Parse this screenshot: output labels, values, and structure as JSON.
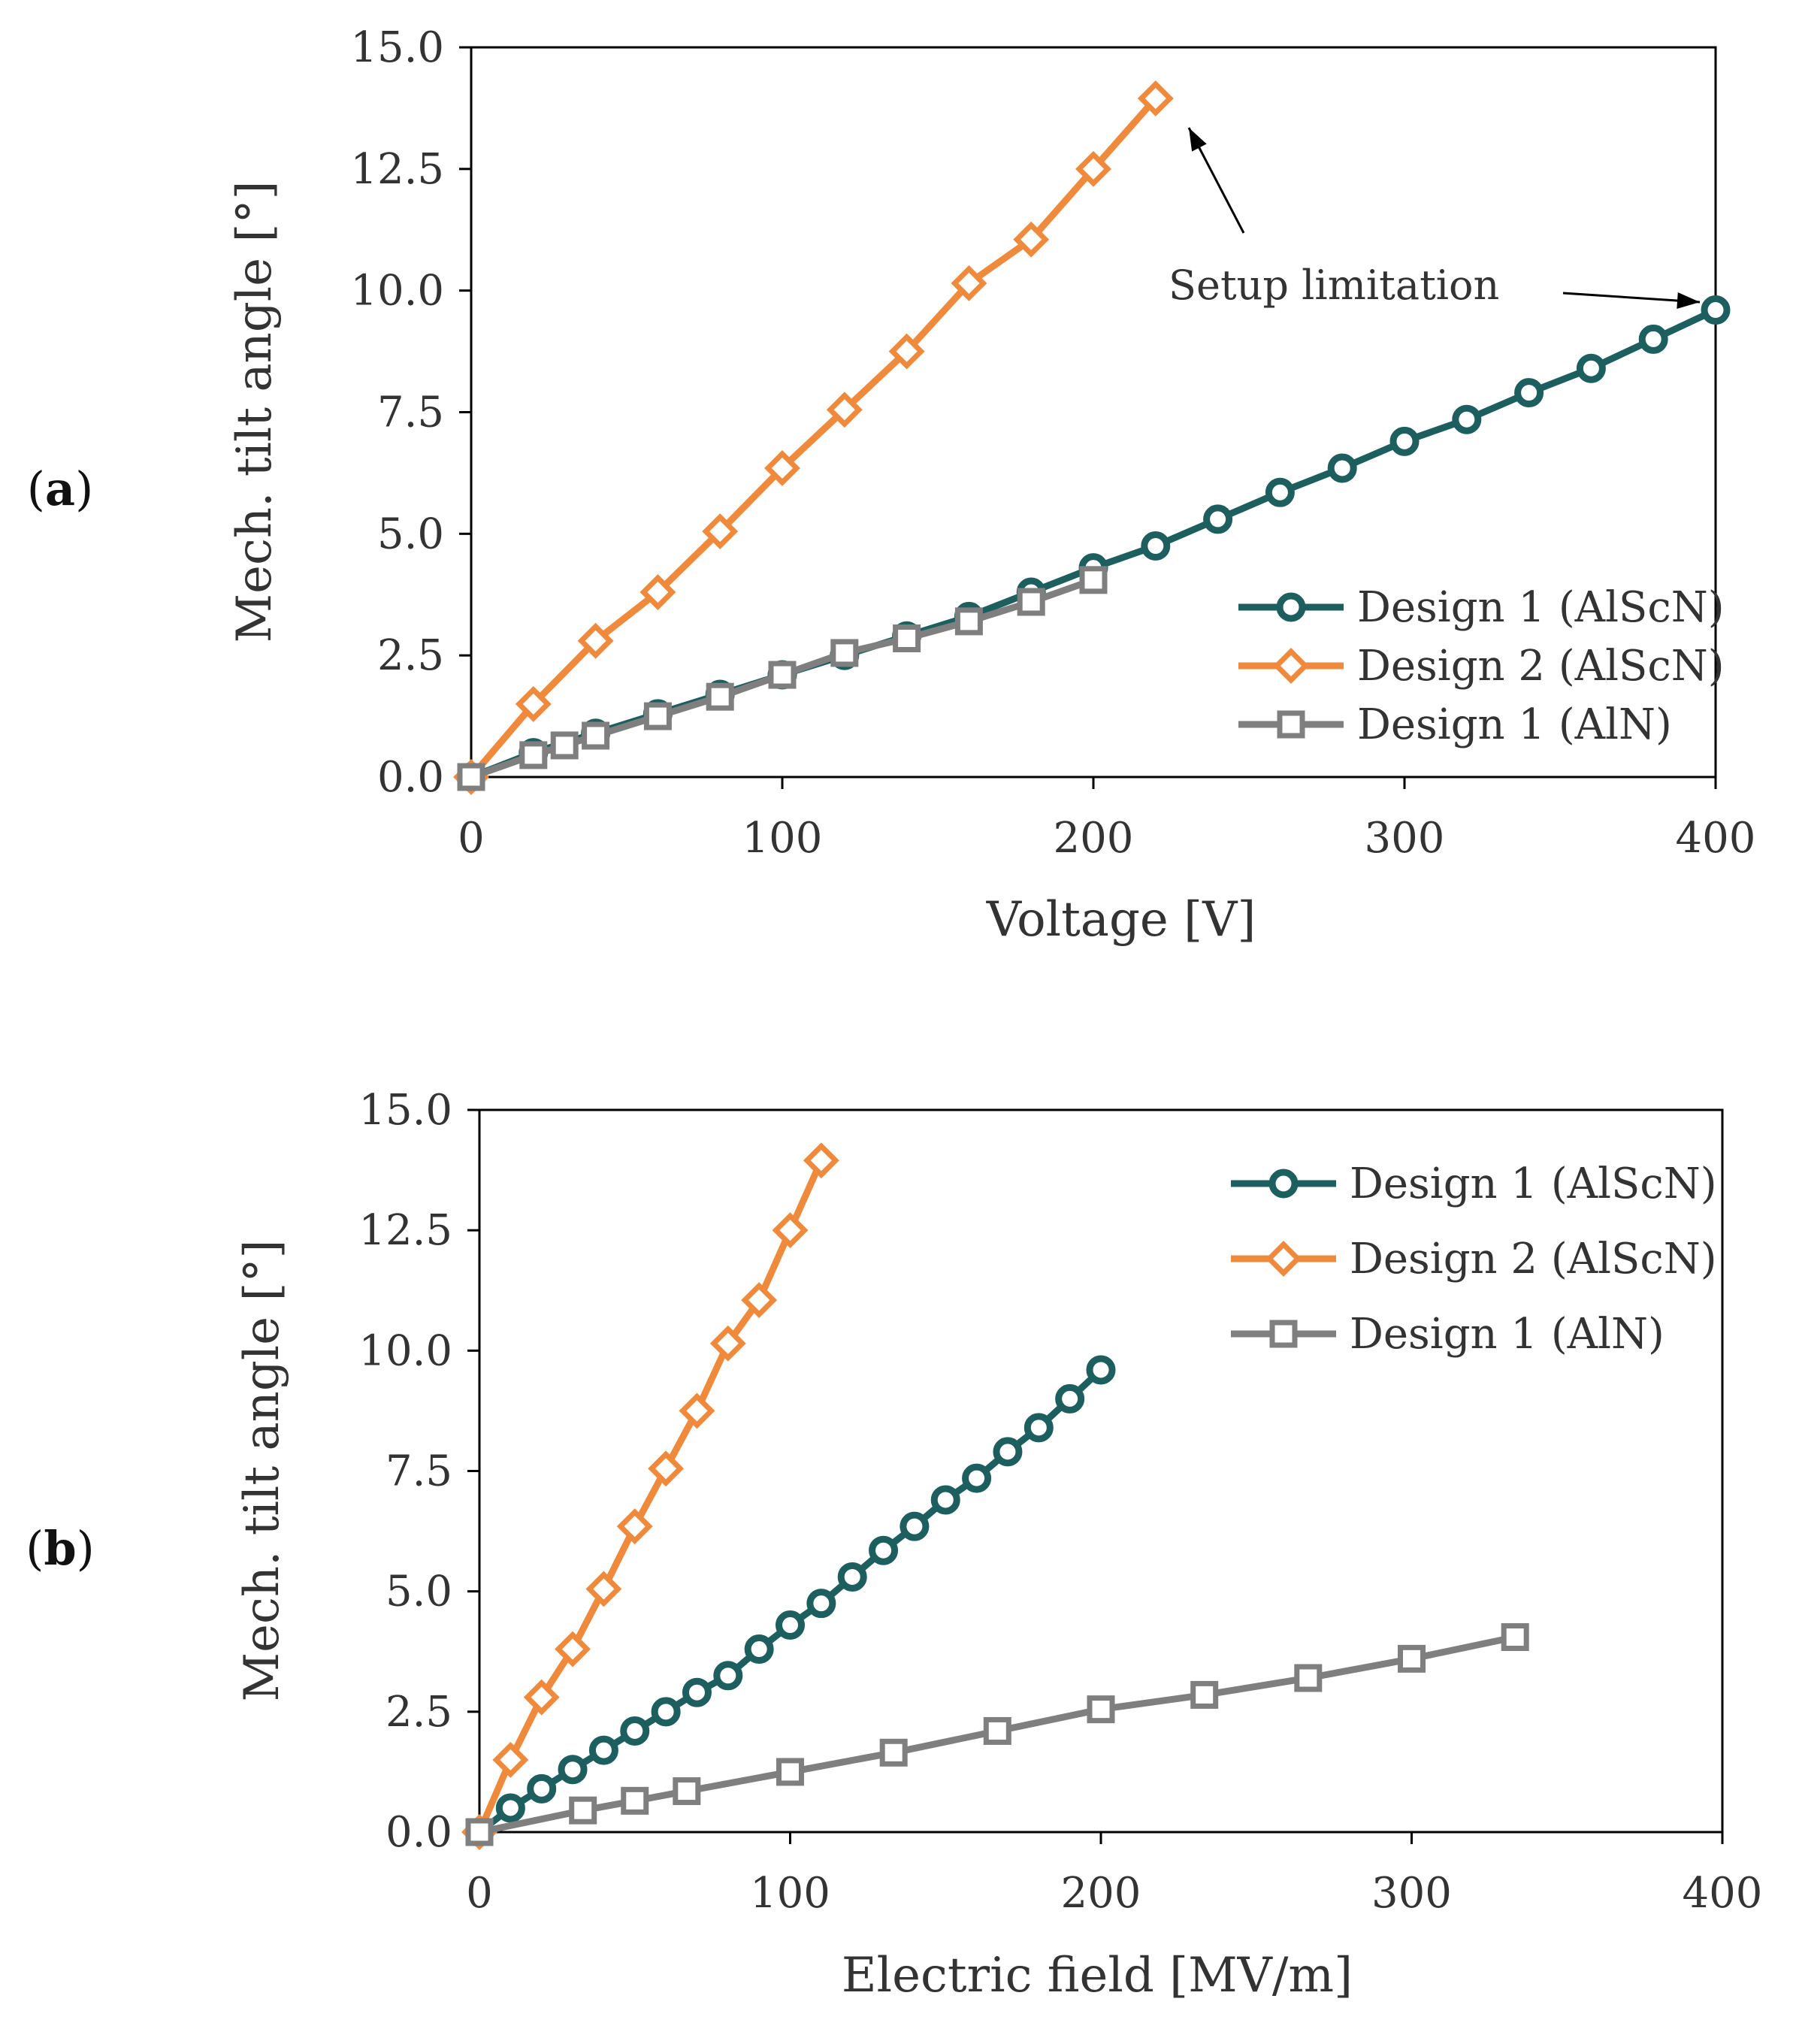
{
  "chart_data": [
    {
      "type": "line",
      "panel_label": "(a)",
      "panel_bold": "a",
      "xlabel": "Voltage [V]",
      "ylabel": "Mech. tilt angle [°]",
      "xlim": [
        0,
        400
      ],
      "ylim": [
        0,
        15
      ],
      "xticks": [
        "0",
        "100",
        "200",
        "300",
        "400"
      ],
      "yticks": [
        "0.0",
        "2.5",
        "5.0",
        "7.5",
        "10.0",
        "12.5",
        "15.0"
      ],
      "grid": false,
      "legend_position": "bottom-right",
      "annotation": "Setup limitation",
      "series": [
        {
          "name": "Design 1 (AlScN)",
          "color": "#1d5e5f",
          "marker": "circle",
          "x": [
            0,
            20,
            40,
            60,
            80,
            100,
            120,
            140,
            160,
            180,
            200,
            220,
            240,
            260,
            280,
            300,
            320,
            340,
            360,
            380,
            400
          ],
          "y": [
            0.0,
            0.5,
            0.9,
            1.3,
            1.7,
            2.1,
            2.5,
            2.9,
            3.3,
            3.8,
            4.3,
            4.75,
            5.3,
            5.85,
            6.35,
            6.9,
            7.35,
            7.9,
            8.4,
            9.0,
            9.6
          ]
        },
        {
          "name": "Design 2 (AlScN)",
          "color": "#ef8a3c",
          "marker": "diamond",
          "x": [
            0,
            20,
            40,
            60,
            80,
            100,
            120,
            140,
            160,
            180,
            200,
            220
          ],
          "y": [
            0.0,
            1.5,
            2.8,
            3.8,
            5.05,
            6.35,
            7.55,
            8.75,
            10.15,
            11.05,
            12.5,
            13.95
          ]
        },
        {
          "name": "Design 1 (AlN)",
          "color": "#7f7f7f",
          "marker": "square",
          "x": [
            0,
            20,
            30,
            40,
            60,
            80,
            100,
            120,
            140,
            160,
            180,
            200
          ],
          "y": [
            0.0,
            0.45,
            0.65,
            0.85,
            1.25,
            1.65,
            2.1,
            2.55,
            2.85,
            3.2,
            3.6,
            4.05
          ]
        }
      ]
    },
    {
      "type": "line",
      "panel_label": "(b)",
      "panel_bold": "b",
      "xlabel": "Electric field [MV/m]",
      "ylabel": "Mech. tilt angle [°]",
      "xlim": [
        0,
        400
      ],
      "ylim": [
        0,
        15
      ],
      "xticks": [
        "0",
        "100",
        "200",
        "300",
        "400"
      ],
      "yticks": [
        "0.0",
        "2.5",
        "5.0",
        "7.5",
        "10.0",
        "12.5",
        "15.0"
      ],
      "grid": false,
      "legend_position": "top-right",
      "series": [
        {
          "name": "Design 1 (AlScN)",
          "color": "#1d5e5f",
          "marker": "circle",
          "x": [
            0,
            10,
            20,
            30,
            40,
            50,
            60,
            70,
            80,
            90,
            100,
            110,
            120,
            130,
            140,
            150,
            160,
            170,
            180,
            190,
            200
          ],
          "y": [
            0.0,
            0.5,
            0.9,
            1.3,
            1.7,
            2.1,
            2.5,
            2.9,
            3.25,
            3.8,
            4.3,
            4.75,
            5.3,
            5.85,
            6.35,
            6.9,
            7.35,
            7.9,
            8.4,
            9.0,
            9.6
          ]
        },
        {
          "name": "Design 2 (AlScN)",
          "color": "#ef8a3c",
          "marker": "diamond",
          "x": [
            0,
            10,
            20,
            30,
            40,
            50,
            60,
            70,
            80,
            90,
            100,
            110
          ],
          "y": [
            0.0,
            1.5,
            2.8,
            3.8,
            5.05,
            6.35,
            7.55,
            8.75,
            10.15,
            11.05,
            12.5,
            13.95
          ]
        },
        {
          "name": "Design 1 (AlN)",
          "color": "#7f7f7f",
          "marker": "square",
          "x": [
            0,
            33.3,
            50,
            66.7,
            100,
            133.3,
            166.7,
            200,
            233.3,
            266.7,
            300,
            333.3
          ],
          "y": [
            0.0,
            0.45,
            0.65,
            0.85,
            1.25,
            1.65,
            2.1,
            2.55,
            2.85,
            3.2,
            3.6,
            4.05
          ]
        }
      ]
    }
  ]
}
